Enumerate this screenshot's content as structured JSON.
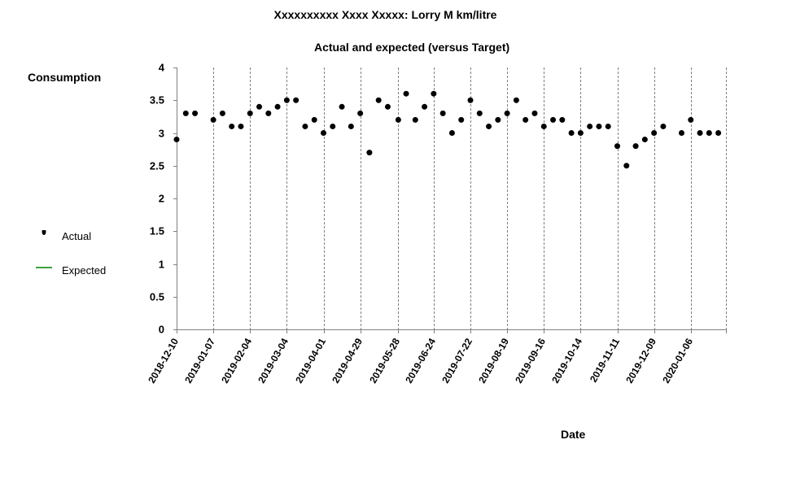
{
  "chart_data": {
    "type": "scatter",
    "title": "Xxxxxxxxxx Xxxx Xxxxx: Lorry M km/litre",
    "subtitle": "Actual and expected (versus Target)",
    "ylabel": "Consumption",
    "xlabel": "Date",
    "ylim": [
      0,
      4
    ],
    "yticks": [
      "0",
      "0.5",
      "1",
      "1.5",
      "2",
      "2.5",
      "3",
      "3.5",
      "4"
    ],
    "xticks": [
      "2018-12-10",
      "2019-01-07",
      "2019-02-04",
      "2019-03-04",
      "2019-04-01",
      "2019-04-29",
      "2019-05-28",
      "2019-06-24",
      "2019-07-22",
      "2019-08-19",
      "2019-09-16",
      "2019-10-14",
      "2019-11-11",
      "2019-12-09",
      "2020-01-06"
    ],
    "grid": "vertical dashed",
    "legend": {
      "placement": "left",
      "entries": [
        {
          "label": "Actual",
          "marker": "dot",
          "color": "#000000"
        },
        {
          "label": "Expected",
          "marker": "line",
          "color": "#008000"
        }
      ]
    },
    "series": [
      {
        "name": "Actual",
        "color": "#000000",
        "x": [
          "2018-12-10",
          "2018-12-17",
          "2018-12-24",
          "2019-01-07",
          "2019-01-14",
          "2019-01-21",
          "2019-01-28",
          "2019-02-04",
          "2019-02-11",
          "2019-02-18",
          "2019-02-25",
          "2019-03-04",
          "2019-03-11",
          "2019-03-18",
          "2019-03-25",
          "2019-04-01",
          "2019-04-08",
          "2019-04-15",
          "2019-04-22",
          "2019-04-29",
          "2019-05-06",
          "2019-05-13",
          "2019-05-20",
          "2019-05-28",
          "2019-06-03",
          "2019-06-10",
          "2019-06-17",
          "2019-06-24",
          "2019-07-01",
          "2019-07-08",
          "2019-07-15",
          "2019-07-22",
          "2019-07-29",
          "2019-08-05",
          "2019-08-12",
          "2019-08-19",
          "2019-08-26",
          "2019-09-02",
          "2019-09-09",
          "2019-09-16",
          "2019-09-23",
          "2019-09-30",
          "2019-10-07",
          "2019-10-14",
          "2019-10-21",
          "2019-10-28",
          "2019-11-04",
          "2019-11-11",
          "2019-11-18",
          "2019-11-25",
          "2019-12-02",
          "2019-12-09",
          "2019-12-16",
          "2019-12-30",
          "2020-01-06",
          "2020-01-13",
          "2020-01-20",
          "2020-01-27"
        ],
        "values": [
          2.9,
          3.3,
          3.3,
          3.2,
          3.3,
          3.1,
          3.1,
          3.3,
          3.4,
          3.3,
          3.4,
          3.5,
          3.5,
          3.1,
          3.2,
          3.0,
          3.1,
          3.4,
          3.1,
          3.3,
          2.7,
          3.5,
          3.4,
          3.2,
          3.6,
          3.2,
          3.4,
          3.6,
          3.3,
          3.0,
          3.2,
          3.5,
          3.3,
          3.1,
          3.2,
          3.3,
          3.5,
          3.2,
          3.3,
          3.1,
          3.2,
          3.2,
          3.0,
          3.0,
          3.1,
          3.1,
          3.1,
          2.8,
          2.5,
          2.8,
          2.9,
          3.0,
          3.1,
          3.0,
          3.2,
          3.0,
          3.0,
          3.0
        ]
      },
      {
        "name": "Expected",
        "color": "#008000",
        "x": [],
        "values": []
      }
    ]
  }
}
